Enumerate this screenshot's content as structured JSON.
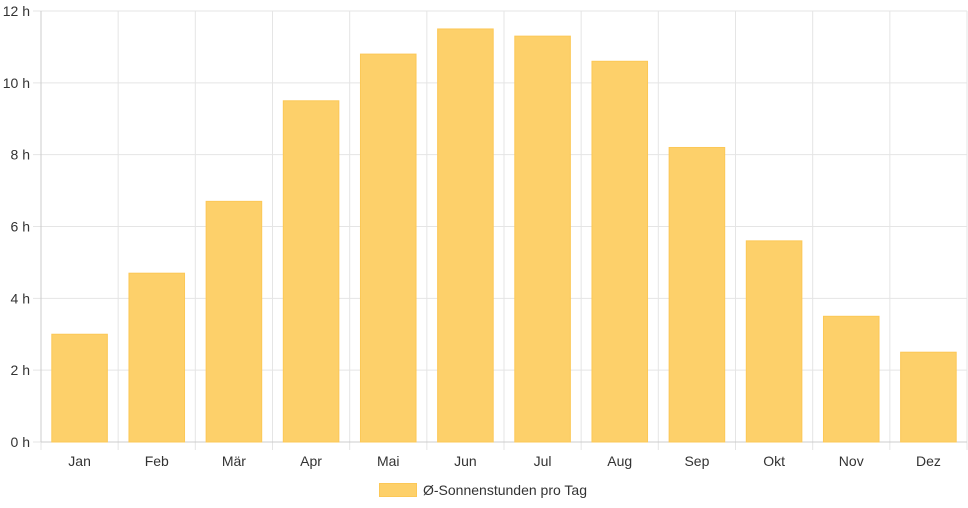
{
  "chart_data": {
    "type": "bar",
    "categories": [
      "Jan",
      "Feb",
      "Mär",
      "Apr",
      "Mai",
      "Jun",
      "Jul",
      "Aug",
      "Sep",
      "Okt",
      "Nov",
      "Dez"
    ],
    "series": [
      {
        "name": "Ø-Sonnenstunden pro Tag",
        "values": [
          3.0,
          4.7,
          6.7,
          9.5,
          10.8,
          11.5,
          11.3,
          10.6,
          8.2,
          5.6,
          3.5,
          2.5
        ]
      }
    ],
    "y_ticks": [
      "0 h",
      "2 h",
      "4 h",
      "6 h",
      "8 h",
      "10 h",
      "12 h"
    ],
    "ylim": [
      0,
      12
    ],
    "grid": true,
    "legend_position": "bottom",
    "bar_color": "#fdd06a",
    "grid_color": "#e5e5e5"
  }
}
